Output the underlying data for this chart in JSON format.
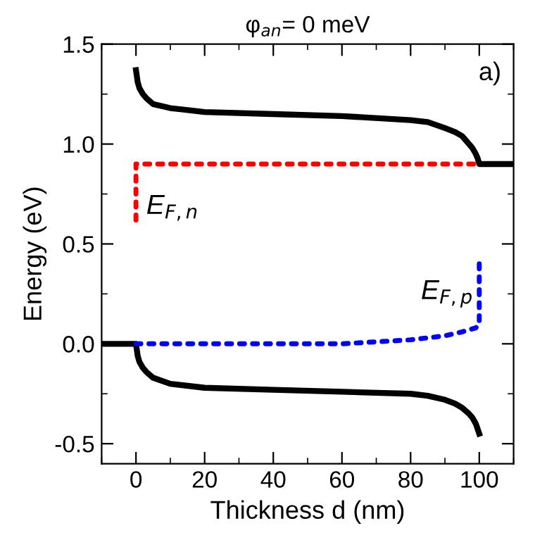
{
  "chart_data": {
    "type": "line",
    "title": "φ$_{an}$= 0 meV",
    "xlabel": "Thickness d (nm)",
    "ylabel": "Energy (eV)",
    "xlim": [
      -10,
      110
    ],
    "ylim": [
      -0.6,
      1.5
    ],
    "xticks": [
      0,
      20,
      40,
      60,
      80,
      100
    ],
    "yticks": [
      {
        "value": -0.5,
        "label": "-0.5"
      },
      {
        "value": 0,
        "label": "0.0"
      },
      {
        "value": 0.5,
        "label": "0.5"
      },
      {
        "value": 1.0,
        "label": "1.0"
      },
      {
        "value": 1.5,
        "label": "1.5"
      }
    ],
    "grid": false,
    "legend": false,
    "annotations": [
      "a)"
    ],
    "series": [
      {
        "color": "#000000",
        "line_style": "solid",
        "x": [
          0,
          0.5,
          1,
          2,
          3,
          5,
          10,
          20,
          40,
          60,
          80,
          85,
          90,
          93,
          95,
          97,
          98,
          99,
          99.5,
          100,
          105,
          110
        ],
        "values": [
          1.37,
          1.31,
          1.28,
          1.25,
          1.23,
          1.2,
          1.18,
          1.16,
          1.15,
          1.14,
          1.12,
          1.11,
          1.08,
          1.06,
          1.04,
          1.0,
          0.98,
          0.95,
          0.93,
          0.9,
          0.9,
          0.9
        ]
      },
      {
        "color": "#000000",
        "line_style": "solid",
        "x": [
          -10,
          0,
          0.5,
          1,
          2,
          3,
          5,
          10,
          20,
          40,
          60,
          80,
          85,
          90,
          93,
          95,
          97,
          98,
          99,
          100
        ],
        "values": [
          0,
          0,
          -0.06,
          -0.09,
          -0.12,
          -0.14,
          -0.17,
          -0.2,
          -0.22,
          -0.23,
          -0.24,
          -0.25,
          -0.26,
          -0.28,
          -0.3,
          -0.32,
          -0.35,
          -0.37,
          -0.4,
          -0.45
        ]
      },
      {
        "name": "E$_{F,n}$",
        "color": "#ff0000",
        "line_style": "dotted",
        "x": [
          0,
          0,
          100
        ],
        "values": [
          0.62,
          0.9,
          0.9
        ]
      },
      {
        "name": "E$_{F,p}$",
        "color": "#0000ff",
        "line_style": "dotted",
        "x": [
          0,
          60,
          80,
          90,
          95,
          99,
          100,
          100
        ],
        "values": [
          0,
          0,
          0.02,
          0.04,
          0.06,
          0.08,
          0.1,
          0.4
        ]
      }
    ]
  }
}
